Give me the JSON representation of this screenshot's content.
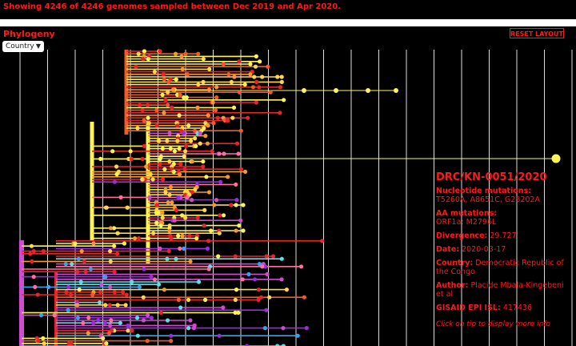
{
  "header": {
    "summary": "Showing 4246 of 4246 genomes sampled between Dec 2019 and Apr 2020."
  },
  "panel": {
    "title": "Phylogeny",
    "reset_button": "RESET LAYOUT",
    "color_by": "Country"
  },
  "tooltip": {
    "strain": "DRC/KN-0051/2020",
    "fields": [
      {
        "label": "Nucleotide mutations:",
        "value": "T5260A, A8651C, G28202A"
      },
      {
        "label": "AA mutations:",
        "value": "ORF1a: M2796L"
      },
      {
        "label": "Divergence:",
        "value": "29.727"
      },
      {
        "label": "Date:",
        "value": "2020-03-17"
      },
      {
        "label": "Country:",
        "value": "Democratic Republic of the Congo"
      },
      {
        "label": "Author:",
        "value": "Placide Mbala-Kingebeni et al"
      },
      {
        "label": "GISAID EPI ISL:",
        "value": "417436"
      }
    ],
    "hint": "Click on tip to display more info"
  }
}
